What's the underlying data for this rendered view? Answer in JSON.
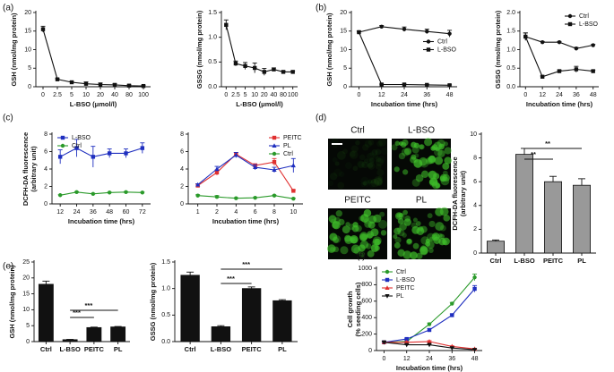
{
  "micrographs": [
    "Ctrl",
    "L-BSO",
    "PEITC",
    "PL"
  ],
  "chart_data": [
    {
      "type": "line",
      "panel": "(a)",
      "xlabel": "L-BSO (μmol/l)",
      "ylabel": [
        "GSH (nmol/mg protein)"
      ],
      "categories": [
        "0",
        "2.5",
        "5",
        "10",
        "20",
        "40",
        "80",
        "100"
      ],
      "series": [
        {
          "color": "#111111",
          "marker": "square",
          "values": [
            15.5,
            2.0,
            1.2,
            0.8,
            0.6,
            0.5,
            0.3,
            0.2
          ],
          "errors": [
            0.8,
            0.2,
            0.2,
            0.5,
            0.4,
            0.3,
            0.2,
            0.2
          ]
        }
      ],
      "ylim": [
        0,
        20
      ],
      "yticks": [
        0,
        5,
        10,
        15,
        20
      ]
    },
    {
      "type": "line",
      "xlabel": "L-BSO (μmol/l)",
      "ylabel": [
        "GSSG (nmol/mg protein)"
      ],
      "categories": [
        "0",
        "2.5",
        "5",
        "10",
        "20",
        "40",
        "80",
        "100"
      ],
      "series": [
        {
          "color": "#111111",
          "marker": "square",
          "values": [
            1.25,
            0.47,
            0.42,
            0.38,
            0.3,
            0.35,
            0.3,
            0.3
          ],
          "errors": [
            0.1,
            0.05,
            0.07,
            0.1,
            0.07,
            0.03,
            0.02,
            0.02
          ]
        }
      ],
      "ylim": [
        0,
        1.5
      ],
      "yticks": [
        {
          "value": 0,
          "label": "0.0"
        },
        {
          "value": 0.5,
          "label": "0.5"
        },
        {
          "value": 1,
          "label": "1.0"
        },
        {
          "value": 1.5,
          "label": "1.5"
        }
      ]
    },
    {
      "type": "line",
      "panel": "(b)",
      "xlabel": "Incubation time (hrs)",
      "ylabel": [
        "GSH (nmol/mg protein)"
      ],
      "x": [
        0,
        12,
        24,
        36,
        48
      ],
      "xlim": [
        -4,
        52
      ],
      "xticks": [
        0,
        12,
        24,
        36,
        48
      ],
      "legend": "center-right",
      "series": [
        {
          "name": "Ctrl",
          "color": "#111111",
          "marker": "circle",
          "values": [
            14.7,
            16.2,
            15.5,
            14.9,
            14.3
          ],
          "errors": [
            0.3,
            0.3,
            0.6,
            0.6,
            0.9
          ]
        },
        {
          "name": "L-BSO",
          "color": "#111111",
          "marker": "square",
          "values": [
            14.7,
            0.6,
            0.6,
            0.5,
            0.4
          ],
          "errors": [
            0.3,
            0.1,
            0.1,
            0.1,
            0.1
          ]
        }
      ],
      "ylim": [
        0,
        20
      ],
      "yticks": [
        0,
        5,
        10,
        15,
        20
      ]
    },
    {
      "type": "line",
      "xlabel": "Incubation time (hrs)",
      "ylabel": [
        "GSSG (nmol/mg protein)"
      ],
      "x": [
        0,
        12,
        24,
        36,
        48
      ],
      "xlim": [
        -4,
        52
      ],
      "xticks": [
        0,
        12,
        24,
        36,
        48
      ],
      "legend": "top-right",
      "series": [
        {
          "name": "Ctrl",
          "color": "#111111",
          "marker": "circle",
          "values": [
            1.35,
            1.2,
            1.2,
            1.03,
            1.12
          ],
          "errors": [
            0.1,
            0.02,
            0.02,
            0.03,
            0.02
          ]
        },
        {
          "name": "L-BSO",
          "color": "#111111",
          "marker": "square",
          "values": [
            1.35,
            0.27,
            0.42,
            0.47,
            0.42
          ],
          "errors": [
            0.1,
            0.02,
            0.03,
            0.08,
            0.03
          ]
        }
      ],
      "ylim": [
        0,
        2
      ],
      "yticks": [
        {
          "value": 0,
          "label": "0.0"
        },
        {
          "value": 0.5,
          "label": "0.5"
        },
        {
          "value": 1,
          "label": "1.0"
        },
        {
          "value": 1.5,
          "label": "1.5"
        },
        {
          "value": 2,
          "label": "2.0"
        }
      ]
    },
    {
      "type": "line",
      "panel": "(c)",
      "xlabel": "Incubation time (hrs)",
      "ylabel": [
        "DCFH-DA fluorescence",
        "(arbitrary unit)"
      ],
      "categories": [
        "12",
        "24",
        "36",
        "48",
        "60",
        "72"
      ],
      "legend": "top-left",
      "series": [
        {
          "name": "L-BSO",
          "color": "#1f2fbf",
          "marker": "square",
          "values": [
            5.4,
            6.4,
            5.4,
            5.8,
            5.8,
            6.4
          ],
          "errors": [
            0.8,
            1.0,
            1.2,
            0.5,
            0.5,
            0.6
          ]
        },
        {
          "name": "Ctrl",
          "color": "#2a9a2a",
          "marker": "circle",
          "values": [
            1.0,
            1.35,
            1.15,
            1.3,
            1.35,
            1.3
          ],
          "errors": [
            0.05,
            0.05,
            0.05,
            0.05,
            0.05,
            0.05
          ]
        }
      ],
      "ylim": [
        0,
        8
      ],
      "yticks": [
        0,
        2,
        4,
        6,
        8
      ]
    },
    {
      "type": "line",
      "xlabel": "Incubation time (hrs)",
      "ylabel": [],
      "categories": [
        "1",
        "2",
        "4",
        "6",
        "8",
        "10"
      ],
      "legend": "top-right",
      "series": [
        {
          "name": "PEITC",
          "color": "#e03030",
          "marker": "square",
          "values": [
            2.1,
            3.6,
            5.7,
            4.4,
            4.8,
            1.5
          ],
          "errors": [
            0.2,
            0.3,
            0.2,
            0.2,
            0.4,
            0.1
          ]
        },
        {
          "name": "PL",
          "color": "#1f2fbf",
          "marker": "triangle",
          "values": [
            2.2,
            4.0,
            5.6,
            4.2,
            3.9,
            4.4
          ],
          "errors": [
            0.1,
            0.3,
            0.3,
            0.3,
            0.3,
            0.8
          ]
        },
        {
          "name": "Ctrl",
          "color": "#2a9a2a",
          "marker": "circle",
          "values": [
            0.95,
            0.8,
            0.65,
            0.7,
            0.95,
            0.6
          ],
          "errors": [
            0.1,
            0.15,
            0.05,
            0.05,
            0.05,
            0.05
          ]
        }
      ],
      "ylim": [
        0,
        8
      ],
      "yticks": [
        0,
        2,
        4,
        6,
        8
      ]
    },
    {
      "type": "bar",
      "panel": "(d)",
      "ylabel": [
        "DCFH-DA fluorescence",
        "(arbitrary unit)"
      ],
      "categories": [
        "Ctrl",
        "L-BSO",
        "PEITC",
        "PL"
      ],
      "values": [
        1.0,
        8.3,
        6.0,
        5.7
      ],
      "errors": [
        0.1,
        0.5,
        0.45,
        0.55
      ],
      "color": "#999999",
      "annotations": [
        "**",
        "**"
      ],
      "ylim": [
        0,
        10
      ],
      "yticks": [
        0,
        2,
        4,
        6,
        8,
        10
      ]
    },
    {
      "type": "bar",
      "panel": "(e)",
      "ylabel": [
        "GSH (nmol/mg protein)"
      ],
      "categories": [
        "Ctrl",
        "L-BSO",
        "PEITC",
        "PL"
      ],
      "values": [
        18,
        0.6,
        4.4,
        4.6
      ],
      "errors": [
        1.0,
        0.1,
        0.15,
        0.15
      ],
      "color": "#111111",
      "annotations": [
        "***",
        "***"
      ],
      "ylim": [
        0,
        25
      ],
      "yticks": [
        0,
        5,
        10,
        15,
        20,
        25
      ]
    },
    {
      "type": "bar",
      "ylabel": [
        "GSSG (nmol/mg protein)"
      ],
      "categories": [
        "Ctrl",
        "L-BSO",
        "PEITC",
        "PL"
      ],
      "values": [
        1.25,
        0.28,
        1.0,
        0.77
      ],
      "errors": [
        0.06,
        0.02,
        0.03,
        0.02
      ],
      "color": "#111111",
      "annotations": [
        "***",
        "***"
      ],
      "ylim": [
        0,
        1.5
      ],
      "yticks": [
        {
          "value": 0,
          "label": "0.0"
        },
        {
          "value": 0.5,
          "label": "0.5"
        },
        {
          "value": 1,
          "label": "1.0"
        },
        {
          "value": 1.5,
          "label": "1.5"
        }
      ]
    },
    {
      "type": "line",
      "panel": "(f)",
      "xlabel": "Incubation time (hrs)",
      "ylabel": [
        "Cell growth",
        "(% seeding cells)"
      ],
      "x": [
        0,
        12,
        24,
        36,
        48
      ],
      "xlim": [
        -4,
        52
      ],
      "xticks": [
        0,
        12,
        24,
        36,
        48
      ],
      "legend": "top-left",
      "series": [
        {
          "name": "Ctrl",
          "color": "#2a9a2a",
          "marker": "circle",
          "values": [
            100,
            110,
            320,
            570,
            890
          ],
          "errors": [
            10,
            10,
            15,
            15,
            40
          ]
        },
        {
          "name": "L-BSO",
          "color": "#1f2fbf",
          "marker": "square",
          "values": [
            100,
            140,
            250,
            430,
            750
          ],
          "errors": [
            10,
            10,
            15,
            15,
            40
          ]
        },
        {
          "name": "PEITC",
          "color": "#e03030",
          "marker": "triangle",
          "values": [
            100,
            100,
            110,
            50,
            20
          ],
          "errors": [
            10,
            10,
            10,
            8,
            5
          ]
        },
        {
          "name": "PL",
          "color": "#111111",
          "marker": "triangle-down",
          "values": [
            100,
            70,
            70,
            30,
            10
          ],
          "errors": [
            10,
            8,
            8,
            5,
            5
          ]
        }
      ],
      "ylim": [
        0,
        1000
      ],
      "yticks": [
        0,
        200,
        400,
        600,
        800,
        1000
      ]
    }
  ]
}
